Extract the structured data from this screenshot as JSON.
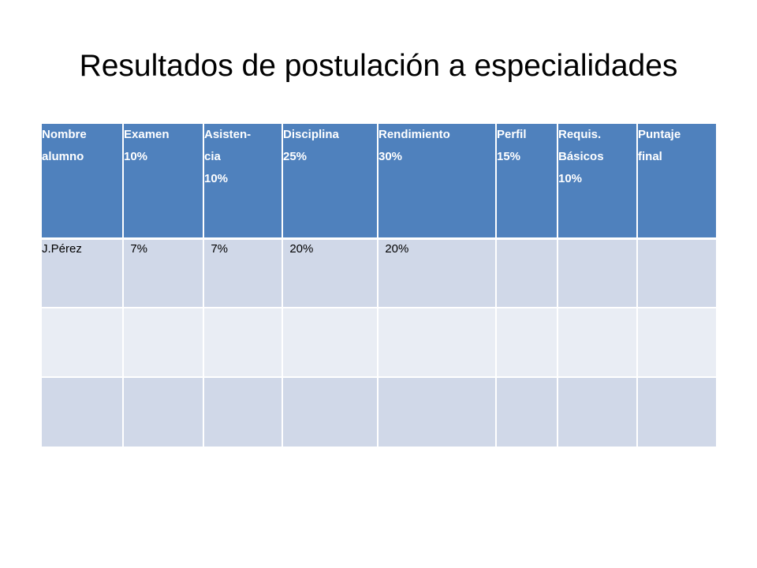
{
  "title": "Resultados de postulación a especialidades",
  "table": {
    "headers": [
      "Nombre\nalumno",
      "Examen\n10%",
      "Asisten-\ncia\n10%",
      "Disciplina\n25%",
      "Rendimiento\n30%",
      "Perfil\n15%",
      "Requis.\nBásicos\n10%",
      "Puntaje\nfinal"
    ],
    "rows": [
      [
        "J.Pérez",
        "  7%",
        "  7%",
        "  20%",
        "  20%",
        "",
        "",
        ""
      ],
      [
        "",
        "",
        "",
        "",
        "",
        "",
        "",
        ""
      ],
      [
        "",
        "",
        "",
        "",
        "",
        "",
        "",
        ""
      ]
    ]
  },
  "colors": {
    "header_bg": "#4f81bd",
    "row_dark": "#d0d8e8",
    "row_light": "#e9edf4"
  }
}
